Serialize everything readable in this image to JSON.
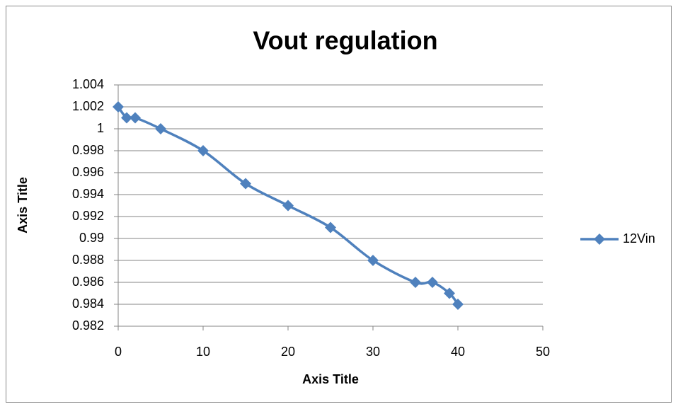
{
  "chart_data": {
    "type": "line",
    "title": "Vout regulation",
    "xlabel": "Axis Title",
    "ylabel": "Axis Title",
    "x": [
      0,
      1,
      2,
      5,
      10,
      15,
      20,
      25,
      30,
      35,
      37,
      39,
      40
    ],
    "series": [
      {
        "name": "12Vin",
        "color": "#4f81bd",
        "values": [
          1.002,
          1.001,
          1.001,
          1.0,
          0.998,
          0.995,
          0.993,
          0.991,
          0.988,
          0.986,
          0.986,
          0.985,
          0.984
        ]
      }
    ],
    "xlim": [
      0,
      50
    ],
    "xticks": [
      0,
      10,
      20,
      30,
      40,
      50
    ],
    "ylim": [
      0.982,
      1.004
    ],
    "yticks": [
      0.982,
      0.984,
      0.986,
      0.988,
      0.99,
      0.992,
      0.994,
      0.996,
      0.998,
      1,
      1.002,
      1.004
    ],
    "grid": true,
    "smooth": true,
    "marker": "diamond",
    "legend": "right"
  }
}
